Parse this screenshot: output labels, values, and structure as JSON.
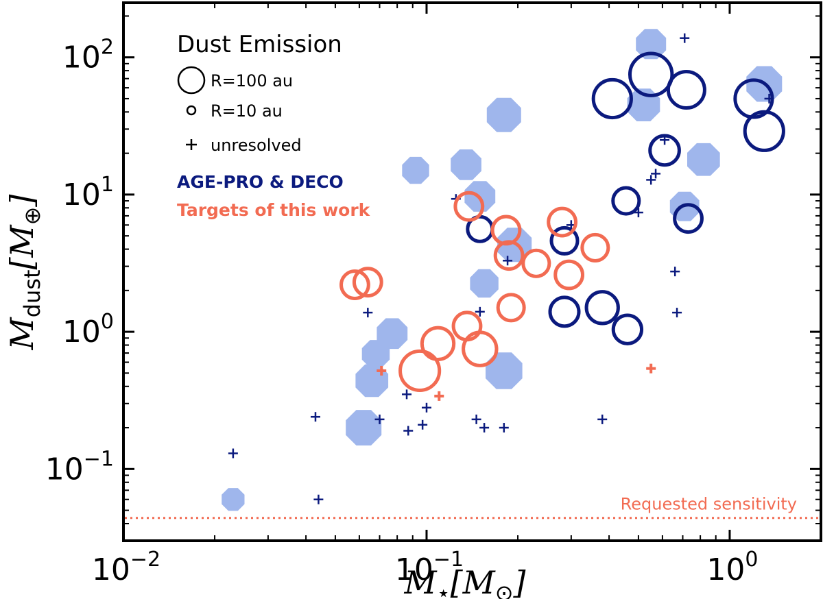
{
  "chart_data": {
    "type": "scatter",
    "x_scale": "log",
    "y_scale": "log",
    "xlim": [
      0.01,
      2.0
    ],
    "ylim": [
      0.03,
      250
    ],
    "xlabel": "M⋆[M⊙]",
    "ylabel": "Mdust[M⊕]",
    "xticks": [
      {
        "value": 0.01,
        "base": "10",
        "exp": "−2"
      },
      {
        "value": 0.1,
        "base": "10",
        "exp": "−1"
      },
      {
        "value": 1.0,
        "base": "10",
        "exp": "0"
      }
    ],
    "yticks": [
      {
        "value": 0.1,
        "base": "10",
        "exp": "−1"
      },
      {
        "value": 1.0,
        "base": "10",
        "exp": "0"
      },
      {
        "value": 10.0,
        "base": "10",
        "exp": "1"
      },
      {
        "value": 100.0,
        "base": "10",
        "exp": "2"
      }
    ],
    "colors": {
      "literature": "#9fb6ec",
      "agepro": "#0b1a7e",
      "this_work": "#f26b52",
      "sensitivity": "#f26b52"
    },
    "legend": {
      "title": "Dust Emission",
      "size_entries": [
        {
          "label": "R=100 au",
          "radius_au": 100,
          "marker": "circle"
        },
        {
          "label": "R=10 au",
          "radius_au": 10,
          "marker": "circle"
        },
        {
          "label": "unresolved",
          "marker": "plus"
        }
      ],
      "group_entries": [
        {
          "label": "AGE-PRO & DECO",
          "color": "#0b1a7e"
        },
        {
          "label": "Targets of this work",
          "color": "#f26b52"
        }
      ],
      "placement": "top-left"
    },
    "sensitivity_line": {
      "y": 0.044,
      "label": "Requested sensitivity"
    },
    "series": [
      {
        "marker": "filled-circle",
        "color": "#9fb6ec",
        "points": [
          {
            "x": 0.023,
            "y": 0.06,
            "r_au": 10
          },
          {
            "x": 0.062,
            "y": 0.2,
            "r_au": 60
          },
          {
            "x": 0.066,
            "y": 0.44,
            "r_au": 40
          },
          {
            "x": 0.068,
            "y": 0.69,
            "r_au": 20
          },
          {
            "x": 0.077,
            "y": 0.97,
            "r_au": 30
          },
          {
            "x": 0.092,
            "y": 15,
            "r_au": 18
          },
          {
            "x": 0.135,
            "y": 16.5,
            "r_au": 30
          },
          {
            "x": 0.15,
            "y": 9.7,
            "r_au": 30
          },
          {
            "x": 0.155,
            "y": 2.25,
            "r_au": 22
          },
          {
            "x": 0.18,
            "y": 0.52,
            "r_au": 70
          },
          {
            "x": 0.18,
            "y": 38,
            "r_au": 50
          },
          {
            "x": 0.195,
            "y": 4.3,
            "r_au": 50
          },
          {
            "x": 0.52,
            "y": 45,
            "r_au": 40
          },
          {
            "x": 0.55,
            "y": 125,
            "r_au": 28
          },
          {
            "x": 0.71,
            "y": 8.2,
            "r_au": 25
          },
          {
            "x": 0.82,
            "y": 18,
            "r_au": 40
          },
          {
            "x": 1.3,
            "y": 64,
            "r_au": 60
          }
        ]
      },
      {
        "name": "AGE-PRO & DECO",
        "color": "#0b1a7e",
        "points": [
          {
            "x": 0.15,
            "y": 5.6,
            "r_au": 10
          },
          {
            "x": 0.285,
            "y": 4.6,
            "r_au": 12
          },
          {
            "x": 0.285,
            "y": 1.4,
            "r_au": 17
          },
          {
            "x": 0.38,
            "y": 1.5,
            "r_au": 25
          },
          {
            "x": 0.41,
            "y": 50,
            "r_au": 55
          },
          {
            "x": 0.455,
            "y": 9.0,
            "r_au": 12
          },
          {
            "x": 0.46,
            "y": 1.04,
            "r_au": 16
          },
          {
            "x": 0.55,
            "y": 75,
            "r_au": 95
          },
          {
            "x": 0.61,
            "y": 21,
            "r_au": 18
          },
          {
            "x": 0.72,
            "y": 58,
            "r_au": 45
          },
          {
            "x": 0.73,
            "y": 6.7,
            "r_au": 14
          },
          {
            "x": 1.2,
            "y": 50,
            "r_au": 50
          },
          {
            "x": 1.3,
            "y": 29,
            "r_au": 60
          }
        ],
        "unresolved": [
          {
            "x": 0.023,
            "y": 0.13
          },
          {
            "x": 0.043,
            "y": 0.24
          },
          {
            "x": 0.044,
            "y": 0.06
          },
          {
            "x": 0.064,
            "y": 1.38
          },
          {
            "x": 0.07,
            "y": 0.23
          },
          {
            "x": 0.086,
            "y": 0.35
          },
          {
            "x": 0.087,
            "y": 0.19
          },
          {
            "x": 0.097,
            "y": 0.21
          },
          {
            "x": 0.1,
            "y": 0.28
          },
          {
            "x": 0.125,
            "y": 9.3
          },
          {
            "x": 0.146,
            "y": 0.23
          },
          {
            "x": 0.15,
            "y": 1.4
          },
          {
            "x": 0.155,
            "y": 0.2
          },
          {
            "x": 0.18,
            "y": 0.2
          },
          {
            "x": 0.185,
            "y": 3.3
          },
          {
            "x": 0.3,
            "y": 6.0
          },
          {
            "x": 0.38,
            "y": 0.23
          },
          {
            "x": 0.5,
            "y": 7.4
          },
          {
            "x": 0.55,
            "y": 12.8
          },
          {
            "x": 0.57,
            "y": 14.2
          },
          {
            "x": 0.61,
            "y": 25
          },
          {
            "x": 0.66,
            "y": 2.75
          },
          {
            "x": 0.67,
            "y": 1.38
          },
          {
            "x": 0.71,
            "y": 138
          },
          {
            "x": 1.35,
            "y": 50
          }
        ]
      },
      {
        "name": "Targets of this work",
        "color": "#f26b52",
        "points": [
          {
            "x": 0.058,
            "y": 2.2,
            "r_au": 14
          },
          {
            "x": 0.064,
            "y": 2.3,
            "r_au": 14
          },
          {
            "x": 0.095,
            "y": 0.52,
            "r_au": 65
          },
          {
            "x": 0.109,
            "y": 0.82,
            "r_au": 25
          },
          {
            "x": 0.136,
            "y": 1.1,
            "r_au": 14
          },
          {
            "x": 0.138,
            "y": 8.2,
            "r_au": 14
          },
          {
            "x": 0.15,
            "y": 0.75,
            "r_au": 30
          },
          {
            "x": 0.183,
            "y": 5.5,
            "r_au": 14
          },
          {
            "x": 0.187,
            "y": 3.6,
            "r_au": 14
          },
          {
            "x": 0.19,
            "y": 1.5,
            "r_au": 12
          },
          {
            "x": 0.23,
            "y": 3.15,
            "r_au": 12
          },
          {
            "x": 0.28,
            "y": 6.3,
            "r_au": 14
          },
          {
            "x": 0.295,
            "y": 2.6,
            "r_au": 14
          },
          {
            "x": 0.36,
            "y": 4.1,
            "r_au": 12
          }
        ],
        "unresolved": [
          {
            "x": 0.071,
            "y": 0.52
          },
          {
            "x": 0.11,
            "y": 0.34
          },
          {
            "x": 0.55,
            "y": 0.54
          }
        ]
      }
    ]
  }
}
